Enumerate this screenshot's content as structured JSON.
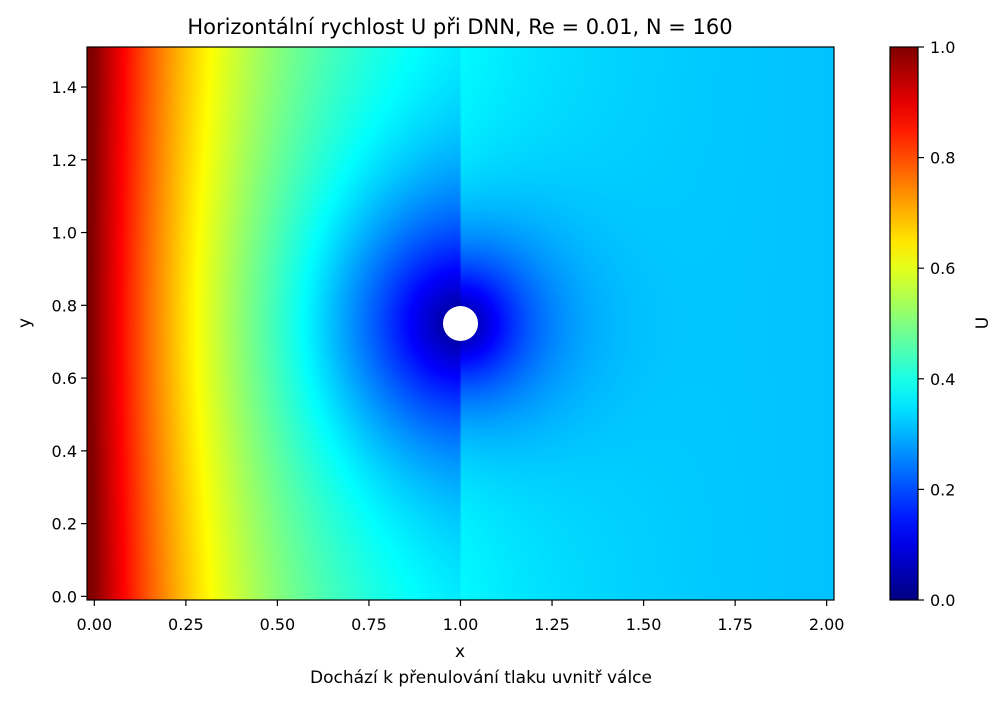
{
  "chart_data": {
    "type": "heatmap",
    "title": "Horizontální rychlost U při DNN, Re = 0.01, N = 160",
    "xlabel": "x",
    "ylabel": "y",
    "caption": "Dochází k přenulování tlaku uvnitř válce",
    "xlim": [
      -0.02,
      2.02
    ],
    "ylim": [
      -0.01,
      1.51
    ],
    "x_ticks": [
      "0.00",
      "0.25",
      "0.50",
      "0.75",
      "1.00",
      "1.25",
      "1.50",
      "1.75",
      "2.00"
    ],
    "y_ticks": [
      "0.0",
      "0.2",
      "0.4",
      "0.6",
      "0.8",
      "1.0",
      "1.2",
      "1.4"
    ],
    "colorbar": {
      "label": "U",
      "colormap": "jet",
      "range": [
        0.0,
        1.0
      ],
      "ticks": [
        "0.0",
        "0.2",
        "0.4",
        "0.6",
        "0.8",
        "1.0"
      ]
    },
    "field": {
      "inflow_value_at_x0": 1.0,
      "far_field_value": 0.31,
      "obstacle": {
        "shape": "circle",
        "center": [
          1.0,
          0.75
        ],
        "radius": 0.045,
        "fill": "#ffffff"
      }
    }
  }
}
